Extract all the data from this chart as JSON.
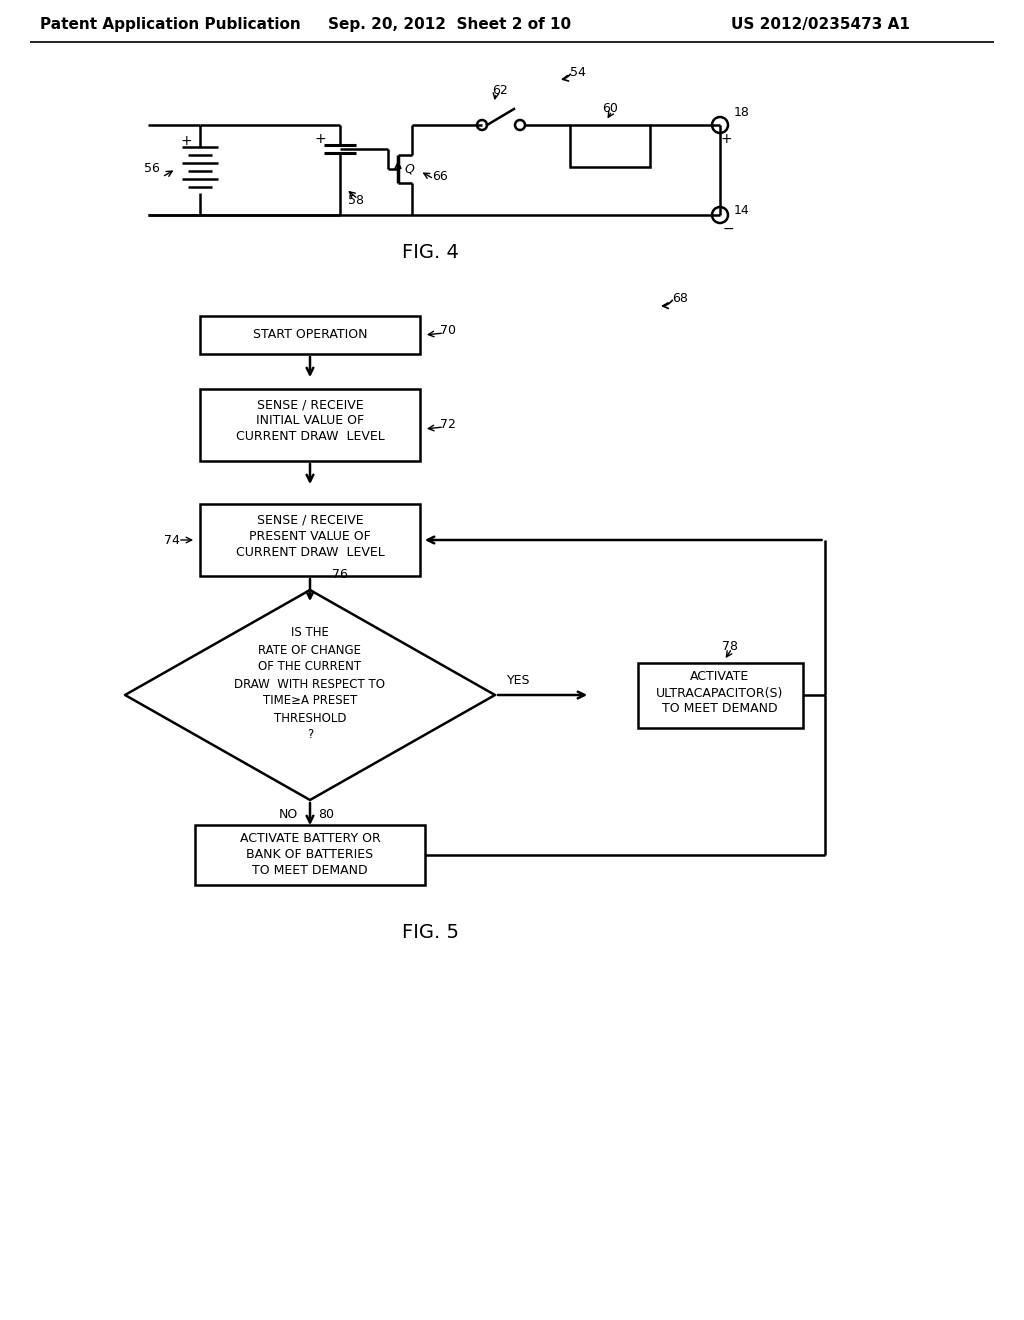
{
  "bg_color": "#ffffff",
  "header_text": "Patent Application Publication",
  "header_date": "Sep. 20, 2012  Sheet 2 of 10",
  "header_patent": "US 2012/0235473 A1",
  "fig4_label": "FIG. 4",
  "fig5_label": "FIG. 5",
  "line_color": "#000000",
  "line_width": 1.8
}
